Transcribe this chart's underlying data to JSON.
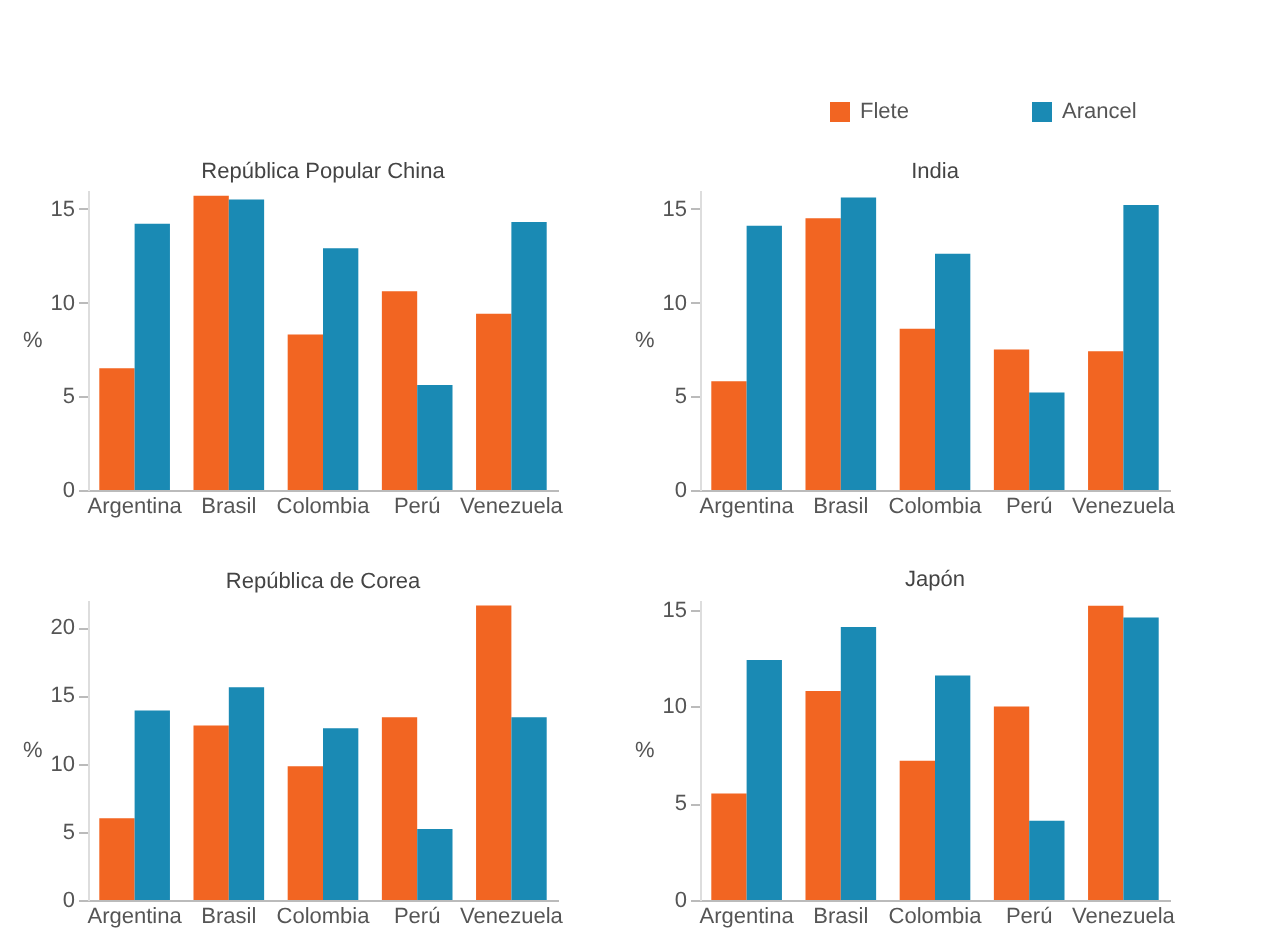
{
  "chart_data": [
    {
      "type": "bar",
      "title": "República Popular China",
      "ylabel": "%",
      "categories": [
        "Argentina",
        "Brasil",
        "Colombia",
        "Perú",
        "Venezuela"
      ],
      "series": [
        {
          "name": "Flete",
          "color": "#f26522",
          "values": [
            6.5,
            15.7,
            8.3,
            10.6,
            9.4
          ]
        },
        {
          "name": "Arancel",
          "color": "#1a8ab4",
          "values": [
            14.2,
            15.5,
            12.9,
            5.6,
            14.3
          ]
        }
      ],
      "ylim": [
        0,
        16
      ],
      "yticks": [
        0,
        5,
        10,
        15
      ],
      "grid": false,
      "legend": "top right"
    },
    {
      "type": "bar",
      "title": "India",
      "ylabel": "%",
      "categories": [
        "Argentina",
        "Brasil",
        "Colombia",
        "Perú",
        "Venezuela"
      ],
      "series": [
        {
          "name": "Flete",
          "color": "#f26522",
          "values": [
            5.8,
            14.5,
            8.6,
            7.5,
            7.4
          ]
        },
        {
          "name": "Arancel",
          "color": "#1a8ab4",
          "values": [
            14.1,
            15.6,
            12.6,
            5.2,
            15.2
          ]
        }
      ],
      "ylim": [
        0,
        16
      ],
      "yticks": [
        0,
        5,
        10,
        15
      ],
      "grid": false,
      "legend": "top right"
    },
    {
      "type": "bar",
      "title": "República de Corea",
      "ylabel": "%",
      "categories": [
        "Argentina",
        "Brasil",
        "Colombia",
        "Perú",
        "Venezuela"
      ],
      "series": [
        {
          "name": "Flete",
          "color": "#f26522",
          "values": [
            6.0,
            12.8,
            9.8,
            13.4,
            21.6
          ]
        },
        {
          "name": "Arancel",
          "color": "#1a8ab4",
          "values": [
            13.9,
            15.6,
            12.6,
            5.2,
            13.4
          ]
        }
      ],
      "ylim": [
        0,
        22
      ],
      "yticks": [
        0,
        5,
        10,
        15,
        20
      ],
      "grid": false,
      "legend": "top right"
    },
    {
      "type": "bar",
      "title": "Japón",
      "ylabel": "%",
      "categories": [
        "Argentina",
        "Brasil",
        "Colombia",
        "Perú",
        "Venezuela"
      ],
      "series": [
        {
          "name": "Flete",
          "color": "#f26522",
          "values": [
            5.5,
            10.8,
            7.2,
            10.0,
            15.2
          ]
        },
        {
          "name": "Arancel",
          "color": "#1a8ab4",
          "values": [
            12.4,
            14.1,
            11.6,
            4.1,
            14.6
          ]
        }
      ],
      "ylim": [
        0,
        15.5
      ],
      "yticks": [
        0,
        5,
        10,
        15
      ],
      "grid": false,
      "legend": "top right"
    }
  ]
}
